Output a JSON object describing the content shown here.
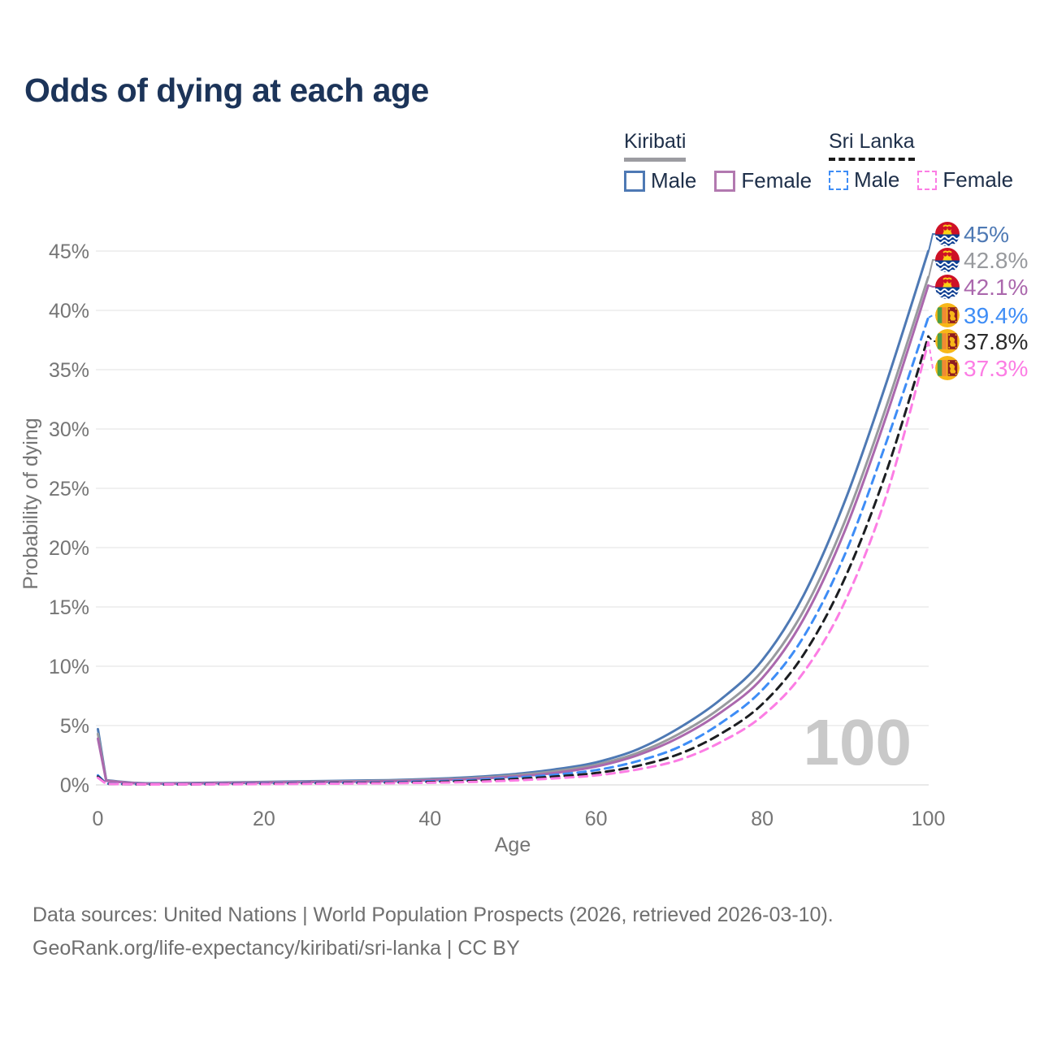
{
  "title": "Odds of dying at each age",
  "watermark": "100",
  "legend": {
    "groups": [
      {
        "label": "Kiribati",
        "line_style": "solid",
        "underline_color": "#9c9ca1",
        "items": [
          {
            "label": "Male",
            "color": "#4e79b4"
          },
          {
            "label": "Female",
            "color": "#b279b0"
          }
        ]
      },
      {
        "label": "Sri Lanka",
        "line_style": "dashed",
        "underline_color": "#1a1a1a",
        "items": [
          {
            "label": "Male",
            "color": "#3e8df6"
          },
          {
            "label": "Female",
            "color": "#fc7de4"
          }
        ]
      }
    ]
  },
  "axes": {
    "x": {
      "label": "Age",
      "ticks": [
        0,
        20,
        40,
        60,
        80,
        100
      ],
      "min": 0,
      "max": 100
    },
    "y": {
      "label": "Probability of dying",
      "tick_labels": [
        "0%",
        "5%",
        "10%",
        "15%",
        "20%",
        "25%",
        "30%",
        "35%",
        "40%",
        "45%"
      ],
      "tick_values": [
        0,
        5,
        10,
        15,
        20,
        25,
        30,
        35,
        40,
        45
      ],
      "min": 0,
      "max": 45
    }
  },
  "footer": {
    "line1": "Data sources: United Nations | World Population Prospects (2026, retrieved 2026-03-10).",
    "line2": "GeoRank.org/life-expectancy/kiribati/sri-lanka | CC BY"
  },
  "chart_data": {
    "type": "line",
    "title": "Odds of dying at each age",
    "xlabel": "Age",
    "ylabel": "Probability of dying",
    "unit": "%",
    "xlim": [
      0,
      100
    ],
    "ylim": [
      0,
      45
    ],
    "grid": "horizontal",
    "legend_position": "top-right",
    "ages": [
      0,
      1,
      5,
      10,
      15,
      20,
      25,
      30,
      35,
      40,
      45,
      50,
      55,
      60,
      65,
      70,
      75,
      80,
      85,
      90,
      95,
      100
    ],
    "series": [
      {
        "name": "Kiribati Male",
        "country": "Kiribati",
        "sex": "Male",
        "color": "#4e79b4",
        "dash": "solid",
        "flag_icon": "kiribati-flag-icon",
        "end_label": "45%",
        "end_value": 45.0,
        "values": [
          4.7,
          0.4,
          0.15,
          0.15,
          0.2,
          0.25,
          0.3,
          0.35,
          0.4,
          0.5,
          0.65,
          0.9,
          1.3,
          1.9,
          3.0,
          4.8,
          7.2,
          10.5,
          16.0,
          24.0,
          34.0,
          45.0
        ]
      },
      {
        "name": "Kiribati Both sexes",
        "country": "Kiribati",
        "sex": "Both",
        "color": "#989a9e",
        "dash": "solid",
        "flag_icon": "kiribati-flag-icon",
        "end_label": "42.8%",
        "end_value": 42.8,
        "values": [
          4.3,
          0.37,
          0.13,
          0.13,
          0.17,
          0.22,
          0.26,
          0.3,
          0.35,
          0.44,
          0.57,
          0.8,
          1.15,
          1.7,
          2.7,
          4.3,
          6.5,
          9.6,
          14.7,
          22.3,
          32.0,
          42.8
        ]
      },
      {
        "name": "Kiribati Female",
        "country": "Kiribati",
        "sex": "Female",
        "color": "#ab68ad",
        "dash": "solid",
        "flag_icon": "kiribati-flag-icon",
        "end_label": "42.1%",
        "end_value": 42.1,
        "values": [
          3.9,
          0.34,
          0.12,
          0.12,
          0.15,
          0.19,
          0.23,
          0.27,
          0.31,
          0.39,
          0.5,
          0.7,
          1.0,
          1.55,
          2.5,
          4.0,
          6.1,
          9.0,
          14.0,
          21.5,
          31.2,
          42.1
        ]
      },
      {
        "name": "Sri Lanka Male",
        "country": "Sri Lanka",
        "sex": "Male",
        "color": "#3e8df6",
        "dash": "dashed",
        "flag_icon": "sri-lanka-flag-icon",
        "end_label": "39.4%",
        "end_value": 39.4,
        "values": [
          0.8,
          0.1,
          0.05,
          0.05,
          0.08,
          0.12,
          0.15,
          0.18,
          0.22,
          0.3,
          0.4,
          0.6,
          0.85,
          1.25,
          2.0,
          3.2,
          5.2,
          8.0,
          12.5,
          19.5,
          29.0,
          39.4
        ]
      },
      {
        "name": "Sri Lanka Both sexes",
        "country": "Sri Lanka",
        "sex": "Both",
        "color": "#1c1e21",
        "dash": "dashed",
        "flag_icon": "sri-lanka-flag-icon",
        "end_label": "37.8%",
        "end_value": 37.8,
        "values": [
          0.7,
          0.09,
          0.04,
          0.04,
          0.06,
          0.09,
          0.12,
          0.15,
          0.18,
          0.24,
          0.33,
          0.48,
          0.7,
          1.0,
          1.6,
          2.6,
          4.3,
          6.8,
          11.0,
          17.5,
          26.5,
          37.8
        ]
      },
      {
        "name": "Sri Lanka Female",
        "country": "Sri Lanka",
        "sex": "Female",
        "color": "#fc7de4",
        "dash": "dashed",
        "flag_icon": "sri-lanka-flag-icon",
        "end_label": "37.3%",
        "end_value": 37.3,
        "values": [
          0.6,
          0.08,
          0.04,
          0.04,
          0.05,
          0.07,
          0.09,
          0.11,
          0.14,
          0.18,
          0.25,
          0.37,
          0.55,
          0.8,
          1.3,
          2.1,
          3.6,
          5.8,
          9.5,
          15.5,
          24.5,
          37.3
        ]
      }
    ]
  }
}
